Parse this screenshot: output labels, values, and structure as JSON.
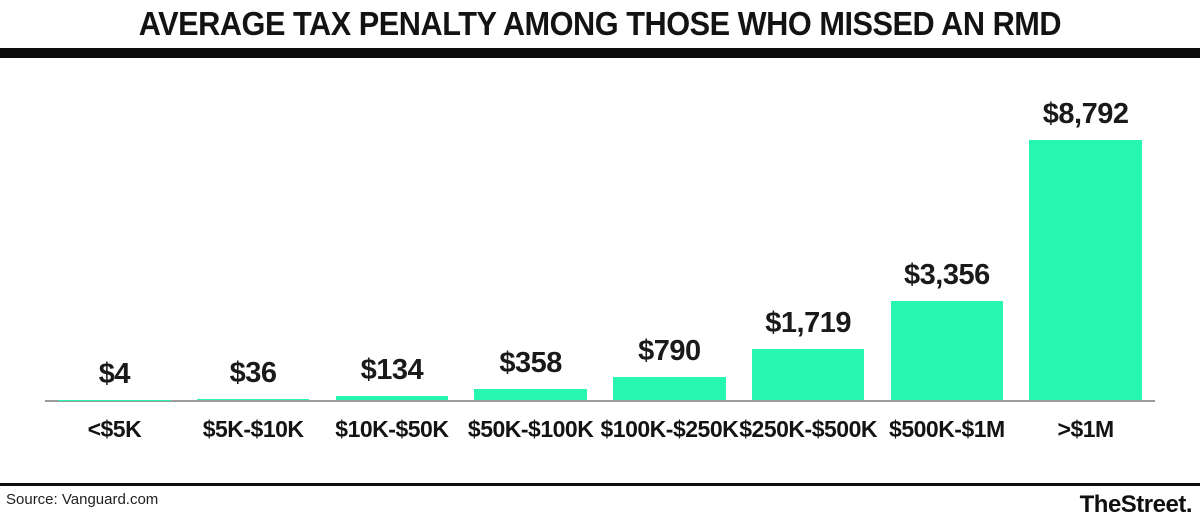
{
  "title": "AVERAGE TAX PENALTY AMONG THOSE WHO MISSED AN RMD",
  "footer": {
    "source": "Source: Vanguard.com",
    "brand": "TheStreet."
  },
  "colors": {
    "bar": "#27f6b0",
    "title_text": "#131313",
    "divider": "#0d0d0d",
    "baseline": "#9c9c9c"
  },
  "chart_data": {
    "type": "bar",
    "title": "AVERAGE TAX PENALTY AMONG THOSE WHO MISSED AN RMD",
    "categories": [
      "<$5K",
      "$5K-$10K",
      "$10K-$50K",
      "$50K-$100K",
      "$100K-$250K",
      "$250K-$500K",
      "$500K-$1M",
      ">$1M"
    ],
    "values": [
      4,
      36,
      134,
      358,
      790,
      1719,
      3356,
      8792
    ],
    "value_labels": [
      "$4",
      "$36",
      "$134",
      "$358",
      "$790",
      "$1,719",
      "$3,356",
      "$8,792"
    ],
    "xlabel": "",
    "ylabel": "",
    "ylim": [
      0,
      8792
    ],
    "bar_color": "#27f6b0",
    "grid": false,
    "legend": false,
    "source": "Vanguard.com"
  }
}
